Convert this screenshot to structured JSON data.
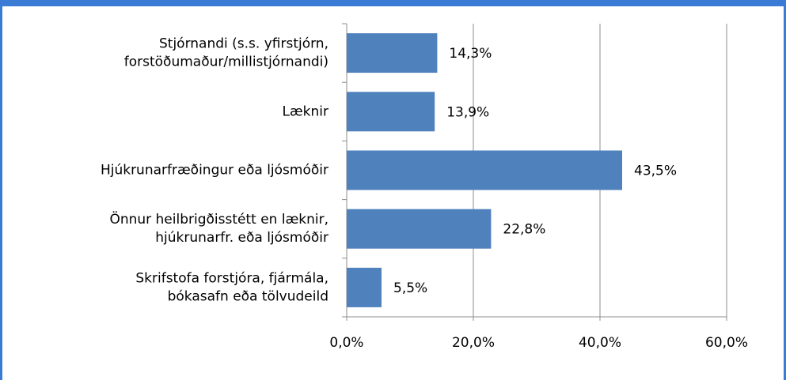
{
  "chart_data": {
    "type": "bar",
    "orientation": "horizontal",
    "categories": [
      [
        "Stjórnandi (s.s. yfirstjórn,",
        "forstöðumaður/millistjórnandi)"
      ],
      [
        "Læknir"
      ],
      [
        "Hjúkrunarfræðingur eða ljósmóðir"
      ],
      [
        "Önnur heilbrigðisstétt en læknir,",
        "hjúkrunarfr. eða ljósmóðir"
      ],
      [
        "Skrifstofa forstjóra, fjármála,",
        "bókasafn eða tölvudeild"
      ]
    ],
    "values": [
      14.3,
      13.9,
      43.5,
      22.8,
      5.5
    ],
    "value_labels": [
      "14,3%",
      "13,9%",
      "43,5%",
      "22,8%",
      "5,5%"
    ],
    "color": "#4f81bd",
    "xlim": [
      0,
      60
    ],
    "xticks": [
      {
        "value": 0,
        "label": "0,0%"
      },
      {
        "value": 20,
        "label": "20,0%"
      },
      {
        "value": 40,
        "label": "40,0%"
      },
      {
        "value": 60,
        "label": "60,0%"
      }
    ],
    "grid": true
  }
}
